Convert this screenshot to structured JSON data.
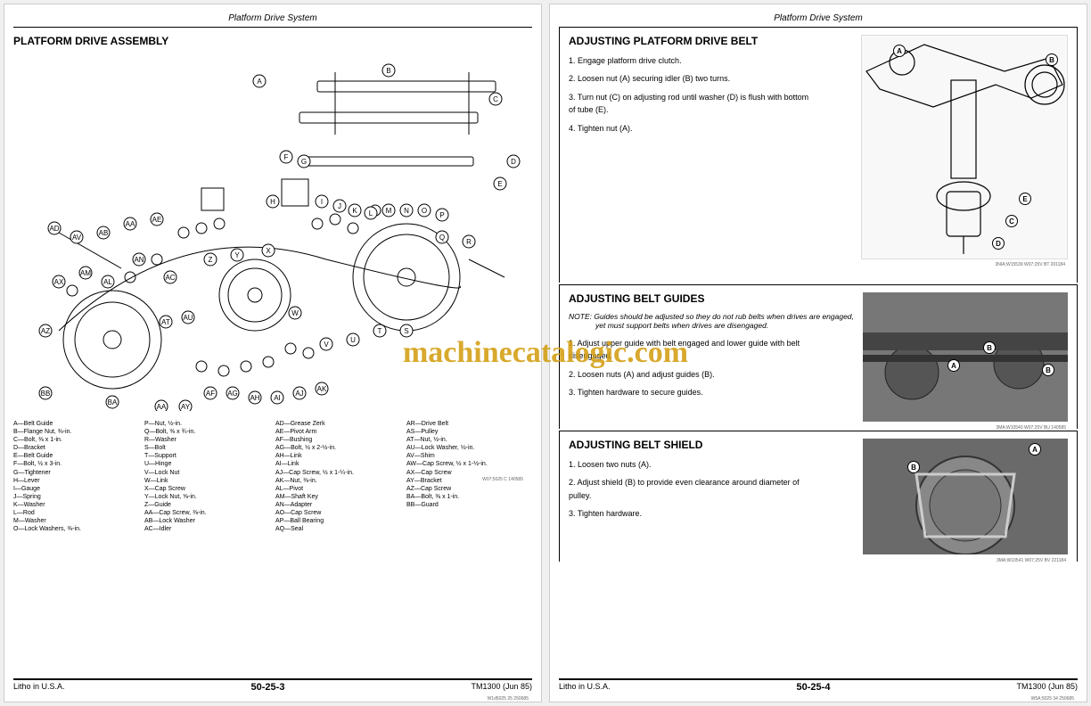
{
  "watermark": "machinecatalogic.com",
  "left_page": {
    "header": "Platform Drive System",
    "section_title": "PLATFORM DRIVE ASSEMBLY",
    "diagram_code": "W07;5025 C 140585",
    "legend": [
      {
        "k": "A",
        "v": "Belt Guide"
      },
      {
        "k": "B",
        "v": "Flange Nut, ⅜-in."
      },
      {
        "k": "C",
        "v": "Bolt, ⅜ x 1-in."
      },
      {
        "k": "D",
        "v": "Bracket"
      },
      {
        "k": "E",
        "v": "Belt Guide"
      },
      {
        "k": "F",
        "v": "Bolt, ½ x 3-in."
      },
      {
        "k": "G",
        "v": "Tightener"
      },
      {
        "k": "H",
        "v": "Lever"
      },
      {
        "k": "I",
        "v": "Gauge"
      },
      {
        "k": "J",
        "v": "Spring"
      },
      {
        "k": "K",
        "v": "Washer"
      },
      {
        "k": "L",
        "v": "Rod"
      },
      {
        "k": "M",
        "v": "Washer"
      },
      {
        "k": "O",
        "v": "Lock Washers, ⅜-in."
      },
      {
        "k": "P",
        "v": "Nut, ½-in."
      },
      {
        "k": "Q",
        "v": "Bolt, ⅜ x ¾-in."
      },
      {
        "k": "R",
        "v": "Washer"
      },
      {
        "k": "S",
        "v": "Bolt"
      },
      {
        "k": "T",
        "v": "Support"
      },
      {
        "k": "U",
        "v": "Hinge"
      },
      {
        "k": "V",
        "v": "Lock Nut"
      },
      {
        "k": "W",
        "v": "Link"
      },
      {
        "k": "X",
        "v": "Cap Screw"
      },
      {
        "k": "Y",
        "v": "Lock Nut, ⅝-in."
      },
      {
        "k": "Z",
        "v": "Guide"
      },
      {
        "k": "AA",
        "v": "Cap Screw, ⅜-in."
      },
      {
        "k": "AB",
        "v": "Lock Washer"
      },
      {
        "k": "AC",
        "v": "Idler"
      },
      {
        "k": "AD",
        "v": "Grease Zerk"
      },
      {
        "k": "AE",
        "v": "Pivot Arm"
      },
      {
        "k": "AF",
        "v": "Bushing"
      },
      {
        "k": "AG",
        "v": "Bolt, ½ x 2-½-in."
      },
      {
        "k": "AH",
        "v": "Link"
      },
      {
        "k": "AI",
        "v": "Link"
      },
      {
        "k": "AJ",
        "v": "Cap Screw, ½ x 1-¼-in."
      },
      {
        "k": "AK",
        "v": "Nut, ⅜-in."
      },
      {
        "k": "AL",
        "v": "Pivot"
      },
      {
        "k": "AM",
        "v": "Shaft Key"
      },
      {
        "k": "AN",
        "v": "Adapter"
      },
      {
        "k": "AO",
        "v": "Cap Screw"
      },
      {
        "k": "AP",
        "v": "Ball Bearing"
      },
      {
        "k": "AQ",
        "v": "Seal"
      },
      {
        "k": "AR",
        "v": "Drive Belt"
      },
      {
        "k": "AS",
        "v": "Pulley"
      },
      {
        "k": "AT",
        "v": "Nut, ½-in."
      },
      {
        "k": "AU",
        "v": "Lock Washer, ½-in."
      },
      {
        "k": "AV",
        "v": "Shim"
      },
      {
        "k": "AW",
        "v": "Cap Screw, ½ x 1-½-in."
      },
      {
        "k": "AX",
        "v": "Cap Screw"
      },
      {
        "k": "AY",
        "v": "Bracket"
      },
      {
        "k": "AZ",
        "v": "Cap Screw"
      },
      {
        "k": "BA",
        "v": "Bolt, ⅜ x 1-in."
      },
      {
        "k": "BB",
        "v": "Guard"
      }
    ],
    "footer_left": "Litho in U.S.A.",
    "footer_center": "50-25-3",
    "footer_right": "TM1300 (Jun 85)",
    "footer_micro": "W1d5025 25 250685"
  },
  "right_page": {
    "header": "Platform Drive System",
    "section1": {
      "title": "ADJUSTING PLATFORM DRIVE BELT",
      "steps": [
        "1. Engage platform drive clutch.",
        "2. Loosen nut (A) securing idler (B) two turns.",
        "3. Turn nut (C) on adjusting rod until washer (D) is flush with bottom of tube (E).",
        "4. Tighten nut (A)."
      ],
      "img_callouts": [
        "A",
        "B",
        "C",
        "D",
        "E"
      ],
      "img_caption": "3NIA;W15539 W07;25V BT 201184"
    },
    "section2": {
      "title": "ADJUSTING BELT GUIDES",
      "note": "NOTE: Guides should be adjusted so they do not rub belts when drives are engaged, yet must support belts when drives are disengaged.",
      "steps": [
        "1. Adjust upper guide with belt engaged and lower guide with belt disengaged.",
        "2. Loosen nuts (A) and adjust guides (B).",
        "3. Tighten hardware to secure guides."
      ],
      "img_callouts": [
        "A",
        "B",
        "B"
      ],
      "img_caption": "3MA;W10540 W07;25V BU 140585"
    },
    "section3": {
      "title": "ADJUSTING BELT SHIELD",
      "steps": [
        "1. Loosen two nuts (A).",
        "2. Adjust shield (B) to provide even clearance around diameter of pulley.",
        "3. Tighten hardware."
      ],
      "img_callouts": [
        "A",
        "B"
      ],
      "img_caption": "3MA;W10541 W07;25V BV 221184"
    },
    "footer_left": "Litho in U.S.A.",
    "footer_center": "50-25-4",
    "footer_right": "TM1300 (Jun 85)",
    "footer_micro": "W5A;5025 34 250685"
  }
}
